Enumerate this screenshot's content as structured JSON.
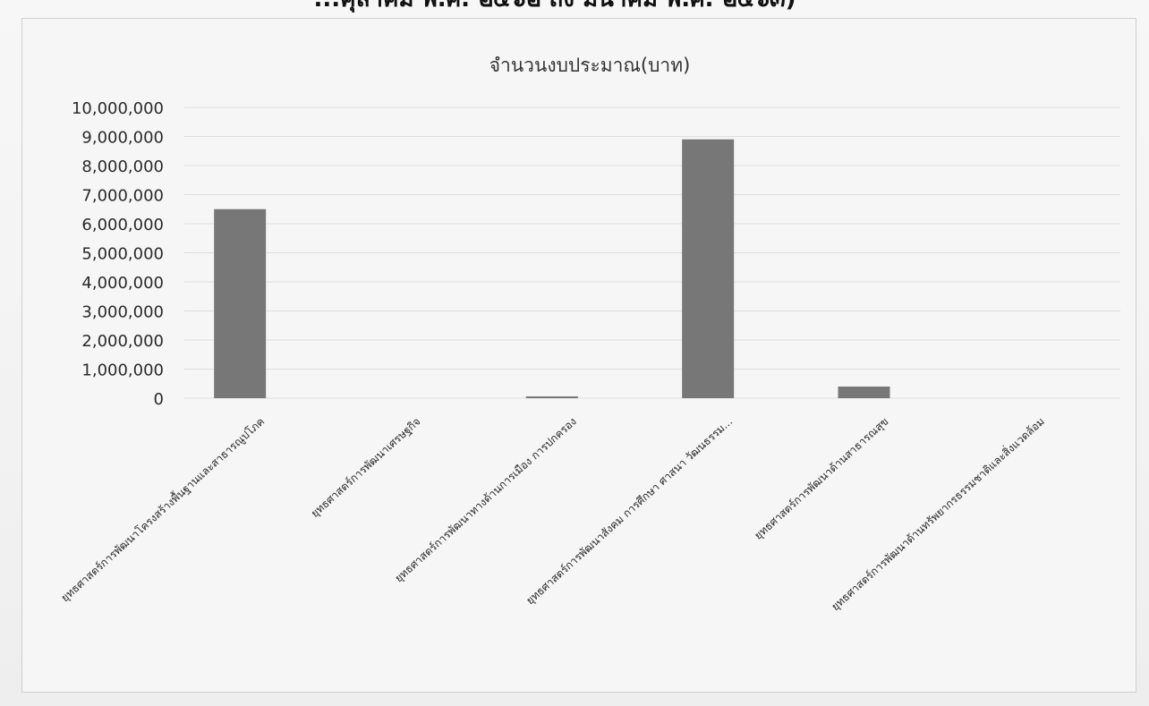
{
  "page": {
    "heading_partial": "...คุลาคม พ.ศ. ๒๕๖๒ ถึง มีนาคม พ.ศ. ๒๕๖๓)"
  },
  "chart_data": {
    "type": "bar",
    "title": "จำนวนงบประมาณ(บาท)",
    "xlabel": "",
    "ylabel": "",
    "ylim": [
      0,
      10000000
    ],
    "yticks": [
      0,
      1000000,
      2000000,
      3000000,
      4000000,
      5000000,
      6000000,
      7000000,
      8000000,
      9000000,
      10000000
    ],
    "ytick_labels": [
      "0",
      "1,000,000",
      "2,000,000",
      "3,000,000",
      "4,000,000",
      "5,000,000",
      "6,000,000",
      "7,000,000",
      "8,000,000",
      "9,000,000",
      "10,000,000"
    ],
    "grid": true,
    "bar_color": "#777777",
    "categories": [
      "ยุทธศาสตร์การพัฒนาโครงสร้างพื้นฐานและสาธารณูปโภค",
      "ยุทธศาสตร์การพัฒนาเศรษฐกิจ",
      "ยุทธศาสตร์การพัฒนาทางด้านการเมือง การปกครอง",
      "ยุทธศาสตร์การพัฒนาสังคม การศึกษา ศาสนา วัฒนธรรม...",
      "ยุทธศาสตร์การพัฒนาด้านสาธารณสุข",
      "ยุทธศาสตร์การพัฒนาด้านทรัพยากรธรรมชาติและสิ่งแวดล้อม"
    ],
    "values": [
      6500000,
      0,
      20000,
      8900000,
      400000,
      0
    ]
  }
}
